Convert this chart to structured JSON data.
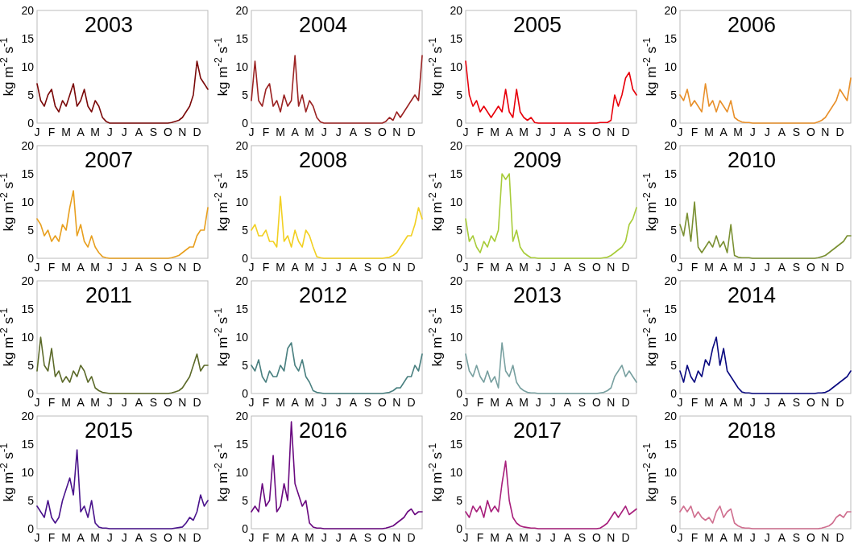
{
  "chart_data": [
    {
      "type": "line",
      "title": "2003",
      "ylabel": "kg m$^{-2}$ s$^{-1}$",
      "ylim": [
        0,
        20
      ],
      "yticks": [
        0,
        5,
        10,
        15,
        20
      ],
      "categories": [
        "J",
        null,
        null,
        null,
        "F",
        null,
        null,
        null,
        "M",
        null,
        null,
        null,
        "A",
        null,
        null,
        null,
        "M",
        null,
        null,
        null,
        "J",
        null,
        null,
        null,
        "J",
        null,
        null,
        null,
        "A",
        null,
        null,
        null,
        "S",
        null,
        null,
        null,
        "O",
        null,
        null,
        null,
        "N",
        null,
        null,
        null,
        "D",
        null,
        null,
        null
      ],
      "series": [
        {
          "color": "#7b0a0a",
          "values": [
            7,
            4,
            3,
            5,
            6,
            3,
            2,
            4,
            3,
            5,
            7,
            3,
            4,
            6,
            3,
            2,
            4,
            3,
            1,
            0.3,
            0,
            0,
            0,
            0,
            0,
            0,
            0,
            0,
            0,
            0,
            0,
            0,
            0,
            0,
            0,
            0,
            0,
            0.1,
            0.3,
            0.5,
            1,
            2,
            3,
            5,
            11,
            8,
            7,
            6
          ]
        }
      ]
    },
    {
      "type": "line",
      "title": "2004",
      "ylabel": "kg m$^{-2}$ s$^{-1}$",
      "ylim": [
        0,
        20
      ],
      "yticks": [
        0,
        5,
        10,
        15,
        20
      ],
      "categories": [
        "J",
        null,
        null,
        null,
        "F",
        null,
        null,
        null,
        "M",
        null,
        null,
        null,
        "A",
        null,
        null,
        null,
        "M",
        null,
        null,
        null,
        "J",
        null,
        null,
        null,
        "J",
        null,
        null,
        null,
        "A",
        null,
        null,
        null,
        "S",
        null,
        null,
        null,
        "O",
        null,
        null,
        null,
        "N",
        null,
        null,
        null,
        "D",
        null,
        null,
        null
      ],
      "series": [
        {
          "color": "#9b2323",
          "values": [
            4,
            11,
            4,
            3,
            6,
            7,
            3,
            4,
            2,
            5,
            3,
            4,
            12,
            3,
            5,
            2,
            4,
            3,
            1,
            0.2,
            0,
            0,
            0,
            0,
            0,
            0,
            0,
            0,
            0,
            0,
            0,
            0,
            0,
            0,
            0,
            0,
            0,
            0.3,
            1,
            0.5,
            2,
            1,
            2,
            3,
            4,
            5,
            4,
            12
          ]
        }
      ]
    },
    {
      "type": "line",
      "title": "2005",
      "ylabel": "kg m$^{-2}$ s$^{-1}$",
      "ylim": [
        0,
        20
      ],
      "yticks": [
        0,
        5,
        10,
        15,
        20
      ],
      "categories": [
        "J",
        null,
        null,
        null,
        "F",
        null,
        null,
        null,
        "M",
        null,
        null,
        null,
        "A",
        null,
        null,
        null,
        "M",
        null,
        null,
        null,
        "J",
        null,
        null,
        null,
        "J",
        null,
        null,
        null,
        "A",
        null,
        null,
        null,
        "S",
        null,
        null,
        null,
        "O",
        null,
        null,
        null,
        "N",
        null,
        null,
        null,
        "D",
        null,
        null,
        null
      ],
      "series": [
        {
          "color": "#e8000b",
          "values": [
            11,
            5,
            3,
            4,
            2,
            3,
            2,
            1,
            2,
            3,
            2,
            6,
            2,
            1,
            6,
            2,
            1,
            0.5,
            1,
            0.1,
            0,
            0,
            0,
            0,
            0,
            0,
            0,
            0,
            0,
            0,
            0,
            0,
            0,
            0,
            0,
            0,
            0,
            0.1,
            0.1,
            0.1,
            0.5,
            5,
            3,
            5,
            8,
            9,
            6,
            5
          ]
        }
      ]
    },
    {
      "type": "line",
      "title": "2006",
      "ylabel": "kg m$^{-2}$ s$^{-1}$",
      "ylim": [
        0,
        20
      ],
      "yticks": [
        0,
        5,
        10,
        15,
        20
      ],
      "categories": [
        "J",
        null,
        null,
        null,
        "F",
        null,
        null,
        null,
        "M",
        null,
        null,
        null,
        "A",
        null,
        null,
        null,
        "M",
        null,
        null,
        null,
        "J",
        null,
        null,
        null,
        "J",
        null,
        null,
        null,
        "A",
        null,
        null,
        null,
        "S",
        null,
        null,
        null,
        "O",
        null,
        null,
        null,
        "N",
        null,
        null,
        null,
        "D",
        null,
        null,
        null
      ],
      "series": [
        {
          "color": "#e8902a",
          "values": [
            5,
            4,
            6,
            3,
            4,
            3,
            2,
            7,
            3,
            4,
            2,
            4,
            3,
            2,
            4,
            1,
            0.5,
            0.2,
            0.1,
            0.1,
            0,
            0,
            0,
            0,
            0,
            0,
            0,
            0,
            0,
            0,
            0,
            0,
            0,
            0,
            0,
            0,
            0,
            0,
            0.2,
            0.5,
            1,
            2,
            3,
            4,
            6,
            5,
            4,
            8
          ]
        }
      ]
    },
    {
      "type": "line",
      "title": "2007",
      "ylabel": "kg m$^{-2}$ s$^{-1}$",
      "ylim": [
        0,
        20
      ],
      "yticks": [
        0,
        5,
        10,
        15,
        20
      ],
      "categories": [
        "J",
        null,
        null,
        null,
        "F",
        null,
        null,
        null,
        "M",
        null,
        null,
        null,
        "A",
        null,
        null,
        null,
        "M",
        null,
        null,
        null,
        "J",
        null,
        null,
        null,
        "J",
        null,
        null,
        null,
        "A",
        null,
        null,
        null,
        "S",
        null,
        null,
        null,
        "O",
        null,
        null,
        null,
        "N",
        null,
        null,
        null,
        "D",
        null,
        null,
        null
      ],
      "series": [
        {
          "color": "#e8a020",
          "values": [
            7,
            6,
            4,
            5,
            3,
            4,
            3,
            6,
            5,
            9,
            12,
            4,
            6,
            3,
            2,
            4,
            2,
            1,
            0.3,
            0.1,
            0,
            0,
            0,
            0,
            0,
            0,
            0,
            0,
            0,
            0,
            0,
            0,
            0,
            0,
            0,
            0,
            0,
            0.1,
            0.3,
            0.5,
            1,
            1.5,
            2,
            2,
            4,
            5,
            5,
            9
          ]
        }
      ]
    },
    {
      "type": "line",
      "title": "2008",
      "ylabel": "kg m$^{-2}$ s$^{-1}$",
      "ylim": [
        0,
        20
      ],
      "yticks": [
        0,
        5,
        10,
        15,
        20
      ],
      "categories": [
        "J",
        null,
        null,
        null,
        "F",
        null,
        null,
        null,
        "M",
        null,
        null,
        null,
        "A",
        null,
        null,
        null,
        "M",
        null,
        null,
        null,
        "J",
        null,
        null,
        null,
        "J",
        null,
        null,
        null,
        "A",
        null,
        null,
        null,
        "S",
        null,
        null,
        null,
        "O",
        null,
        null,
        null,
        "N",
        null,
        null,
        null,
        "D",
        null,
        null,
        null
      ],
      "series": [
        {
          "color": "#f2d022",
          "values": [
            5,
            6,
            4,
            4,
            5,
            3,
            3,
            2,
            11,
            3,
            4,
            2,
            5,
            3,
            2,
            5,
            4,
            2,
            0.3,
            0.1,
            0,
            0,
            0,
            0,
            0,
            0,
            0,
            0,
            0,
            0,
            0,
            0,
            0,
            0,
            0,
            0,
            0,
            0.1,
            0.2,
            0.5,
            1,
            2,
            3,
            4,
            4,
            6,
            9,
            7
          ]
        }
      ]
    },
    {
      "type": "line",
      "title": "2009",
      "ylabel": "kg m$^{-2}$ s$^{-1}$",
      "ylim": [
        0,
        20
      ],
      "yticks": [
        0,
        5,
        10,
        15,
        20
      ],
      "categories": [
        "J",
        null,
        null,
        null,
        "F",
        null,
        null,
        null,
        "M",
        null,
        null,
        null,
        "A",
        null,
        null,
        null,
        "M",
        null,
        null,
        null,
        "J",
        null,
        null,
        null,
        "J",
        null,
        null,
        null,
        "A",
        null,
        null,
        null,
        "S",
        null,
        null,
        null,
        "O",
        null,
        null,
        null,
        "N",
        null,
        null,
        null,
        "D",
        null,
        null,
        null
      ],
      "series": [
        {
          "color": "#a8cc3a",
          "values": [
            7,
            3,
            4,
            2,
            1,
            3,
            2,
            4,
            3,
            5,
            15,
            14,
            15,
            3,
            5,
            2,
            1,
            0.5,
            0.1,
            0.1,
            0,
            0,
            0,
            0,
            0,
            0,
            0,
            0,
            0,
            0,
            0,
            0,
            0,
            0,
            0,
            0,
            0,
            0,
            0.1,
            0.2,
            0.5,
            1,
            1.5,
            2,
            3,
            6,
            7,
            9
          ]
        }
      ]
    },
    {
      "type": "line",
      "title": "2010",
      "ylabel": "kg m$^{-2}$ s$^{-1}$",
      "ylim": [
        0,
        20
      ],
      "yticks": [
        0,
        5,
        10,
        15,
        20
      ],
      "categories": [
        "J",
        null,
        null,
        null,
        "F",
        null,
        null,
        null,
        "M",
        null,
        null,
        null,
        "A",
        null,
        null,
        null,
        "M",
        null,
        null,
        null,
        "J",
        null,
        null,
        null,
        "J",
        null,
        null,
        null,
        "A",
        null,
        null,
        null,
        "S",
        null,
        null,
        null,
        "O",
        null,
        null,
        null,
        "N",
        null,
        null,
        null,
        "D",
        null,
        null,
        null
      ],
      "series": [
        {
          "color": "#7a9032",
          "values": [
            6,
            4,
            8,
            3,
            10,
            2,
            1,
            2,
            3,
            2,
            4,
            2,
            3,
            1,
            6,
            0.5,
            0.2,
            0.1,
            0.1,
            0.1,
            0,
            0,
            0,
            0,
            0,
            0,
            0,
            0,
            0,
            0,
            0,
            0,
            0,
            0,
            0,
            0,
            0,
            0,
            0.1,
            0.3,
            0.5,
            1,
            1.5,
            2,
            2.5,
            3,
            4,
            4
          ]
        }
      ]
    },
    {
      "type": "line",
      "title": "2011",
      "ylabel": "kg m$^{-2}$ s$^{-1}$",
      "ylim": [
        0,
        20
      ],
      "yticks": [
        0,
        5,
        10,
        15,
        20
      ],
      "categories": [
        "J",
        null,
        null,
        null,
        "F",
        null,
        null,
        null,
        "M",
        null,
        null,
        null,
        "A",
        null,
        null,
        null,
        "M",
        null,
        null,
        null,
        "J",
        null,
        null,
        null,
        "J",
        null,
        null,
        null,
        "A",
        null,
        null,
        null,
        "S",
        null,
        null,
        null,
        "O",
        null,
        null,
        null,
        "N",
        null,
        null,
        null,
        "D",
        null,
        null,
        null
      ],
      "series": [
        {
          "color": "#5c6a2a",
          "values": [
            4,
            10,
            5,
            4,
            8,
            3,
            4,
            2,
            3,
            2,
            4,
            3,
            5,
            4,
            2,
            3,
            1,
            0.5,
            0.2,
            0.1,
            0,
            0,
            0,
            0,
            0,
            0,
            0,
            0,
            0,
            0,
            0,
            0,
            0,
            0,
            0,
            0,
            0,
            0.1,
            0.3,
            0.5,
            1,
            2,
            3,
            5,
            7,
            4,
            5,
            5
          ]
        }
      ]
    },
    {
      "type": "line",
      "title": "2012",
      "ylabel": "kg m$^{-2}$ s$^{-1}$",
      "ylim": [
        0,
        20
      ],
      "yticks": [
        0,
        5,
        10,
        15,
        20
      ],
      "categories": [
        "J",
        null,
        null,
        null,
        "F",
        null,
        null,
        null,
        "M",
        null,
        null,
        null,
        "A",
        null,
        null,
        null,
        "M",
        null,
        null,
        null,
        "J",
        null,
        null,
        null,
        "J",
        null,
        null,
        null,
        "A",
        null,
        null,
        null,
        "S",
        null,
        null,
        null,
        "O",
        null,
        null,
        null,
        "N",
        null,
        null,
        null,
        "D",
        null,
        null,
        null
      ],
      "series": [
        {
          "color": "#4a8080",
          "values": [
            5,
            4,
            6,
            3,
            2,
            4,
            3,
            3,
            5,
            4,
            8,
            9,
            5,
            4,
            6,
            3,
            2,
            0.5,
            0.2,
            0.1,
            0,
            0,
            0,
            0,
            0,
            0,
            0,
            0,
            0,
            0,
            0,
            0,
            0,
            0,
            0,
            0,
            0,
            0.1,
            0.2,
            0.5,
            1,
            1,
            2,
            3,
            3,
            5,
            4,
            7
          ]
        }
      ]
    },
    {
      "type": "line",
      "title": "2013",
      "ylabel": "kg m$^{-2}$ s$^{-1}$",
      "ylim": [
        0,
        20
      ],
      "yticks": [
        0,
        5,
        10,
        15,
        20
      ],
      "categories": [
        "J",
        null,
        null,
        null,
        "F",
        null,
        null,
        null,
        "M",
        null,
        null,
        null,
        "A",
        null,
        null,
        null,
        "M",
        null,
        null,
        null,
        "J",
        null,
        null,
        null,
        "J",
        null,
        null,
        null,
        "A",
        null,
        null,
        null,
        "S",
        null,
        null,
        null,
        "O",
        null,
        null,
        null,
        "N",
        null,
        null,
        null,
        "D",
        null,
        null,
        null
      ],
      "series": [
        {
          "color": "#78a0a0",
          "values": [
            7,
            4,
            3,
            5,
            3,
            2,
            4,
            2,
            3,
            1,
            9,
            4,
            3,
            5,
            2,
            1,
            0.5,
            0.2,
            0.1,
            0.1,
            0,
            0,
            0,
            0,
            0,
            0,
            0,
            0,
            0,
            0,
            0,
            0,
            0,
            0,
            0,
            0,
            0,
            0.1,
            0.2,
            0.5,
            1,
            3,
            4,
            5,
            3,
            4,
            3,
            2
          ]
        }
      ]
    },
    {
      "type": "line",
      "title": "2014",
      "ylabel": "kg m$^{-2}$ s$^{-1}$",
      "ylim": [
        0,
        20
      ],
      "yticks": [
        0,
        5,
        10,
        15,
        20
      ],
      "categories": [
        "J",
        null,
        null,
        null,
        "F",
        null,
        null,
        null,
        "M",
        null,
        null,
        null,
        "A",
        null,
        null,
        null,
        "M",
        null,
        null,
        null,
        "J",
        null,
        null,
        null,
        "J",
        null,
        null,
        null,
        "A",
        null,
        null,
        null,
        "S",
        null,
        null,
        null,
        "O",
        null,
        null,
        null,
        "N",
        null,
        null,
        null,
        "D",
        null,
        null,
        null
      ],
      "series": [
        {
          "color": "#0a0a80",
          "values": [
            4,
            2,
            5,
            3,
            2,
            4,
            3,
            6,
            5,
            8,
            10,
            5,
            8,
            4,
            3,
            2,
            1,
            0.3,
            0.1,
            0.1,
            0,
            0,
            0,
            0,
            0,
            0,
            0,
            0,
            0,
            0,
            0,
            0,
            0,
            0,
            0,
            0,
            0,
            0,
            0.1,
            0.1,
            0.2,
            0.5,
            1,
            1.5,
            2,
            2.5,
            3,
            4
          ]
        }
      ]
    },
    {
      "type": "line",
      "title": "2015",
      "ylabel": "kg m$^{-2}$ s$^{-1}$",
      "ylim": [
        0,
        20
      ],
      "yticks": [
        0,
        5,
        10,
        15,
        20
      ],
      "categories": [
        "J",
        null,
        null,
        null,
        "F",
        null,
        null,
        null,
        "M",
        null,
        null,
        null,
        "A",
        null,
        null,
        null,
        "M",
        null,
        null,
        null,
        "J",
        null,
        null,
        null,
        "J",
        null,
        null,
        null,
        "A",
        null,
        null,
        null,
        "S",
        null,
        null,
        null,
        "O",
        null,
        null,
        null,
        "N",
        null,
        null,
        null,
        "D",
        null,
        null,
        null
      ],
      "series": [
        {
          "color": "#4a148c",
          "values": [
            4,
            3,
            2,
            5,
            2,
            1,
            2,
            5,
            7,
            9,
            6,
            14,
            3,
            4,
            2,
            5,
            1,
            0.3,
            0.1,
            0.1,
            0,
            0,
            0,
            0,
            0,
            0,
            0,
            0,
            0,
            0,
            0,
            0,
            0,
            0,
            0,
            0,
            0,
            0,
            0.1,
            0.2,
            0.3,
            1,
            2,
            1.5,
            3,
            6,
            4,
            5
          ]
        }
      ]
    },
    {
      "type": "line",
      "title": "2016",
      "ylabel": "kg m$^{-2}$ s$^{-1}$",
      "ylim": [
        0,
        20
      ],
      "yticks": [
        0,
        5,
        10,
        15,
        20
      ],
      "categories": [
        "J",
        null,
        null,
        null,
        "F",
        null,
        null,
        null,
        "M",
        null,
        null,
        null,
        "A",
        null,
        null,
        null,
        "M",
        null,
        null,
        null,
        "J",
        null,
        null,
        null,
        "J",
        null,
        null,
        null,
        "A",
        null,
        null,
        null,
        "S",
        null,
        null,
        null,
        "O",
        null,
        null,
        null,
        "N",
        null,
        null,
        null,
        "D",
        null,
        null,
        null
      ],
      "series": [
        {
          "color": "#6a0a80",
          "values": [
            3,
            4,
            3,
            8,
            4,
            5,
            13,
            3,
            4,
            8,
            5,
            19,
            8,
            6,
            4,
            5,
            1,
            0.3,
            0.1,
            0.1,
            0,
            0,
            0,
            0,
            0,
            0,
            0,
            0,
            0,
            0,
            0,
            0,
            0,
            0,
            0,
            0,
            0,
            0.1,
            0.3,
            0.5,
            1,
            1.5,
            2,
            3,
            3.5,
            2.5,
            3,
            3
          ]
        }
      ]
    },
    {
      "type": "line",
      "title": "2017",
      "ylabel": "kg m$^{-2}$ s$^{-1}$",
      "ylim": [
        0,
        20
      ],
      "yticks": [
        0,
        5,
        10,
        15,
        20
      ],
      "categories": [
        "J",
        null,
        null,
        null,
        "F",
        null,
        null,
        null,
        "M",
        null,
        null,
        null,
        "A",
        null,
        null,
        null,
        "M",
        null,
        null,
        null,
        "J",
        null,
        null,
        null,
        "J",
        null,
        null,
        null,
        "A",
        null,
        null,
        null,
        "S",
        null,
        null,
        null,
        "O",
        null,
        null,
        null,
        "N",
        null,
        null,
        null,
        "D",
        null,
        null,
        null
      ],
      "series": [
        {
          "color": "#a8207c",
          "values": [
            3,
            2,
            4,
            3,
            4,
            2,
            5,
            3,
            4,
            3,
            8,
            12,
            5,
            2,
            1,
            0.5,
            0.3,
            0.2,
            0.1,
            0.1,
            0,
            0,
            0,
            0,
            0,
            0,
            0,
            0,
            0,
            0,
            0,
            0,
            0,
            0,
            0,
            0,
            0,
            0.1,
            0.5,
            1,
            2,
            3,
            2,
            3,
            4,
            2.5,
            3,
            3.5
          ]
        }
      ]
    },
    {
      "type": "line",
      "title": "2018",
      "ylabel": "kg m$^{-2}$ s$^{-1}$",
      "ylim": [
        0,
        20
      ],
      "yticks": [
        0,
        5,
        10,
        15,
        20
      ],
      "categories": [
        "J",
        null,
        null,
        null,
        "F",
        null,
        null,
        null,
        "M",
        null,
        null,
        null,
        "A",
        null,
        null,
        null,
        "M",
        null,
        null,
        null,
        "J",
        null,
        null,
        null,
        "J",
        null,
        null,
        null,
        "A",
        null,
        null,
        null,
        "S",
        null,
        null,
        null,
        "O",
        null,
        null,
        null,
        "N",
        null,
        null,
        null,
        "D",
        null,
        null,
        null
      ],
      "series": [
        {
          "color": "#d07090",
          "values": [
            3,
            4,
            3,
            4,
            2,
            3,
            2,
            1.5,
            2,
            1,
            3,
            4,
            2,
            3,
            3.5,
            1,
            0.5,
            0.2,
            0.1,
            0.1,
            0,
            0,
            0,
            0,
            0,
            0,
            0,
            0,
            0,
            0,
            0,
            0,
            0,
            0,
            0,
            0,
            0,
            0,
            0,
            0.1,
            0.3,
            0.5,
            1,
            2,
            2.5,
            2,
            3,
            3
          ]
        }
      ]
    }
  ]
}
